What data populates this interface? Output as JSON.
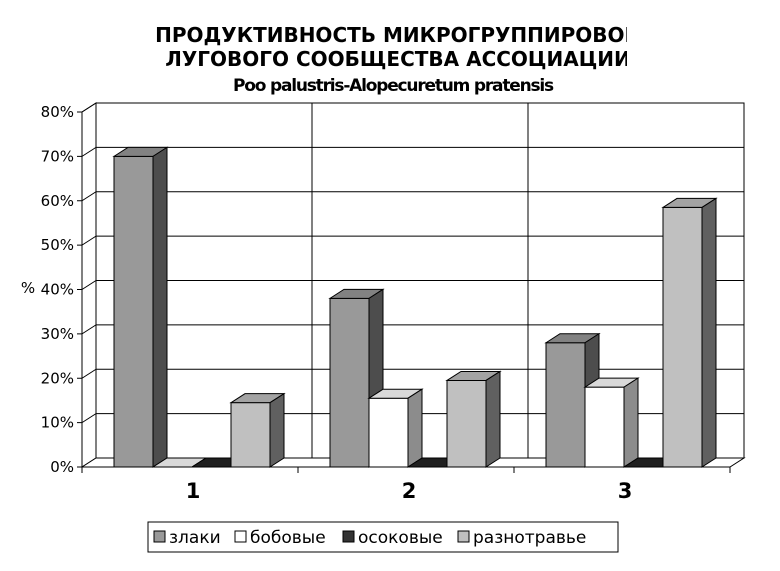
{
  "chart_data": {
    "type": "bar",
    "title_lines": [
      "ПРОДУКТИВНОСТЬ МИКРОГРУППИРОВОК",
      "ЛУГОВОГО СООБЩЕСТВА АССОЦИАЦИИ",
      "Poo palustris-Alopecuretum pratensis"
    ],
    "ylabel": "%",
    "ylim": [
      0,
      80
    ],
    "yticks": [
      "0%",
      "10%",
      "20%",
      "30%",
      "40%",
      "50%",
      "60%",
      "70%",
      "80%"
    ],
    "categories": [
      "1",
      "2",
      "3"
    ],
    "series": [
      {
        "name": "злаки",
        "values": [
          70,
          38,
          28
        ]
      },
      {
        "name": "бобовые",
        "values": [
          0,
          15.5,
          18
        ]
      },
      {
        "name": "осоковые",
        "values": [
          0,
          0,
          0
        ]
      },
      {
        "name": "разнотравье",
        "values": [
          14.5,
          19.5,
          58.5
        ]
      }
    ],
    "grid": true,
    "legend_position": "bottom",
    "colors": {
      "злаки": "#999999",
      "бобовые": "#ffffff",
      "осоковые": "#333333",
      "разнотравье": "#c0c0c0"
    }
  }
}
